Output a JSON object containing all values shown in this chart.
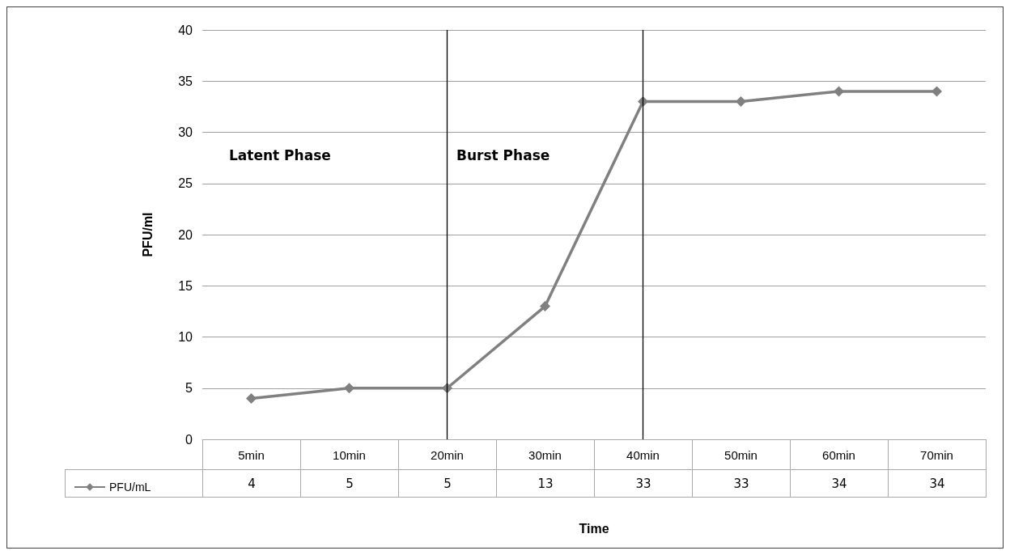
{
  "chart_data": {
    "type": "line",
    "xlabel": "Time",
    "ylabel": "PFU/ml",
    "categories": [
      "5min",
      "10min",
      "20min",
      "30min",
      "40min",
      "50min",
      "60min",
      "70min"
    ],
    "series": [
      {
        "name": "PFU/mL",
        "color": "#808080",
        "values": [
          4,
          5,
          5,
          13,
          33,
          33,
          34,
          34
        ]
      }
    ],
    "ylim": [
      0,
      40
    ],
    "yticks": [
      0,
      5,
      10,
      15,
      20,
      25,
      30,
      35,
      40
    ],
    "grid": "y",
    "marker": "diamond",
    "line_style": "solid",
    "data_labels": true,
    "legend": "bottom left",
    "ref_lines": [
      {
        "axis": "x",
        "value": "20min",
        "color": "#000000"
      },
      {
        "axis": "x",
        "value": "40min",
        "color": "#000000"
      }
    ],
    "annotations": [
      "Latent Phase",
      "Burst Phase"
    ]
  }
}
